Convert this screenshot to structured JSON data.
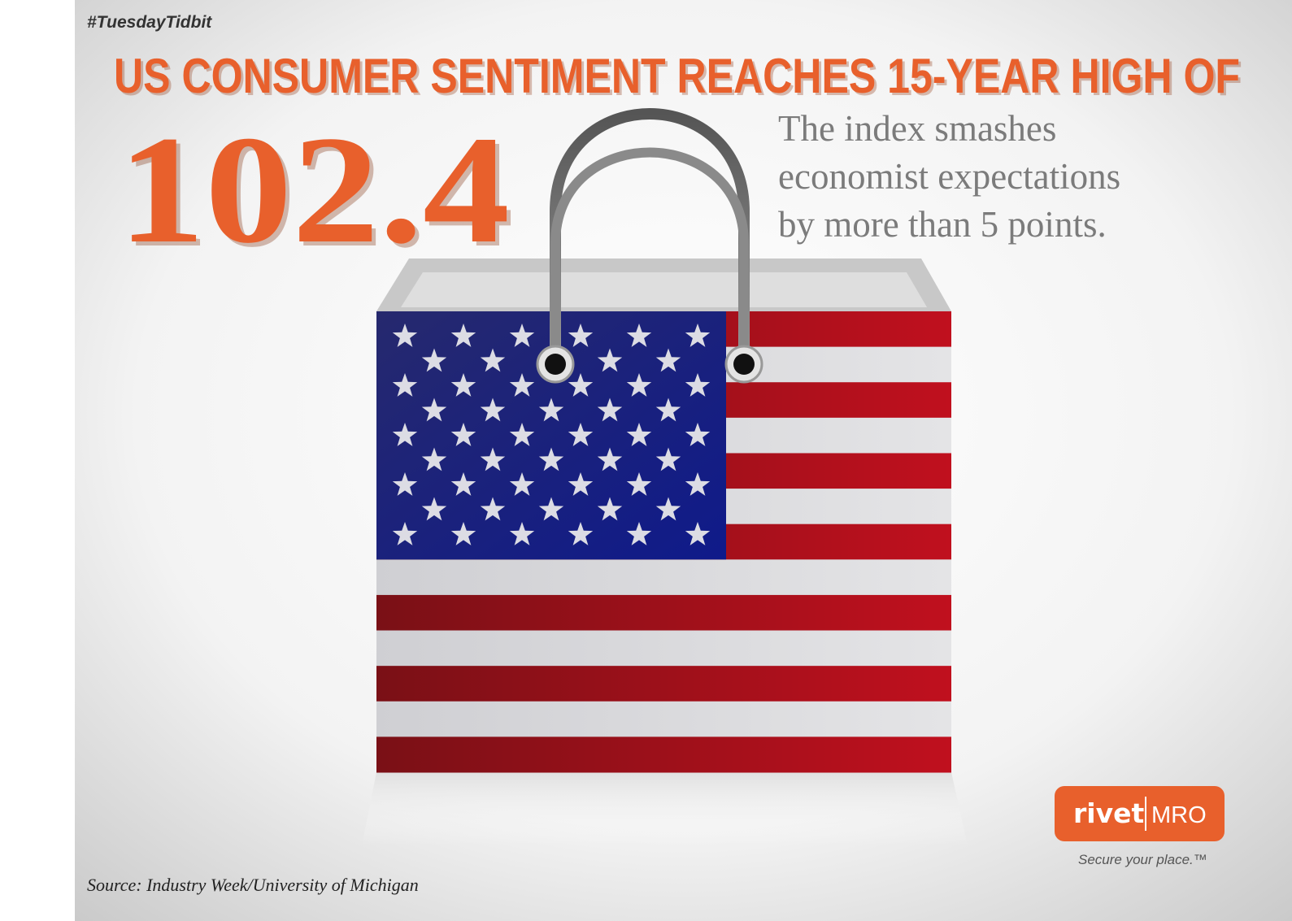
{
  "hashtag": "#TuesdayTidbit",
  "headline": "US CONSUMER SENTIMENT REACHES 15-YEAR HIGH OF",
  "big_number": "102.4",
  "subtext": [
    "The index smashes",
    "economist expectations",
    "by more than 5 points."
  ],
  "source": "Source:  Industry Week/University of Michigan",
  "logo": {
    "brand": "rivet",
    "suffix": "MRO",
    "tagline": "Secure your place.™"
  }
}
